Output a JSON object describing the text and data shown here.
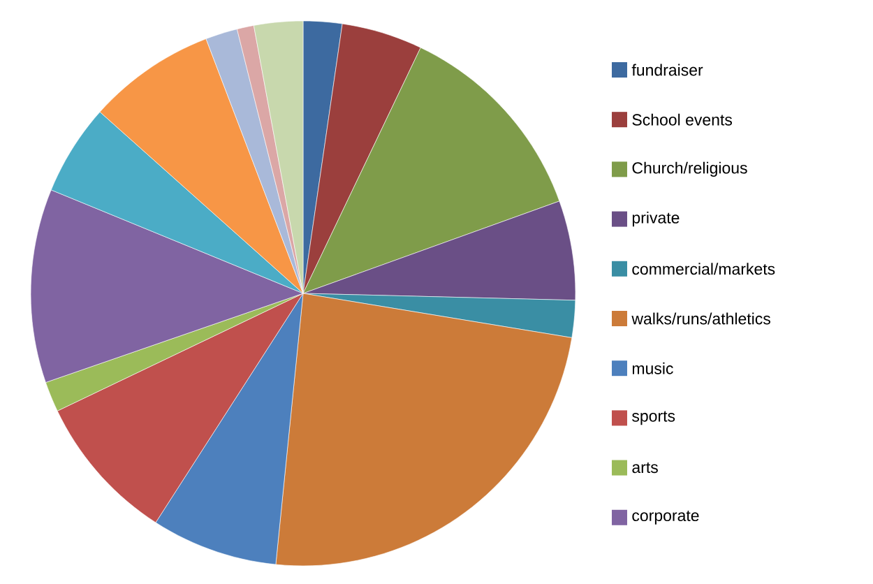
{
  "chart_data": {
    "type": "pie",
    "legend": "right",
    "categories": [
      "fundraiser",
      "School events",
      "Church/religious",
      "private",
      "commercial/markets",
      "walks/runs/athletics",
      "music",
      "sports",
      "arts",
      "corporate",
      null,
      null,
      null,
      null,
      null
    ],
    "values": [
      2.3,
      4.8,
      12.4,
      5.9,
      2.2,
      24.0,
      7.5,
      8.8,
      1.8,
      11.5,
      5.4,
      7.6,
      1.9,
      1.0,
      2.9
    ],
    "colors": [
      "#3d6aa0",
      "#9b3f3d",
      "#7f9c4a",
      "#6a4f86",
      "#3a8ea4",
      "#cc7b39",
      "#4d80bd",
      "#c0504d",
      "#9bbb59",
      "#8064a2",
      "#4bacc6",
      "#f79646",
      "#a9b9d9",
      "#dba7a6",
      "#c8d8ad"
    ]
  }
}
